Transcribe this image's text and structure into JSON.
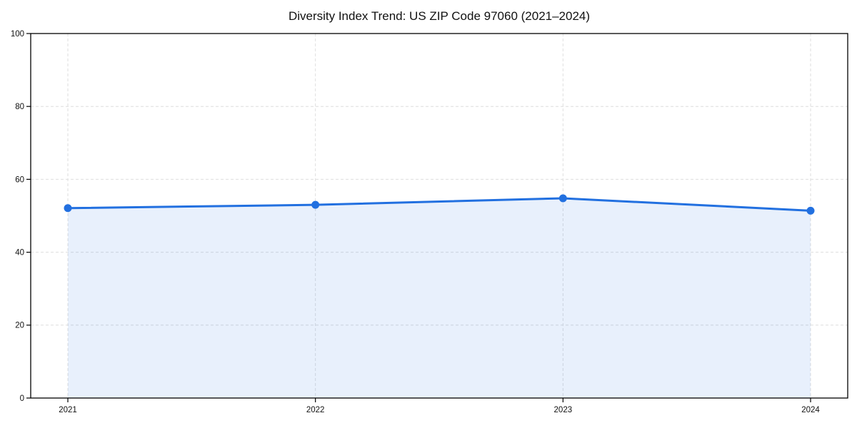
{
  "chart_data": {
    "type": "area",
    "title": "Diversity Index Trend: US ZIP Code 97060 (2021–2024)",
    "x": [
      2021,
      2022,
      2023,
      2024
    ],
    "categories": [
      "2021",
      "2022",
      "2023",
      "2024"
    ],
    "series": [
      {
        "name": "Diversity Index",
        "values": [
          52.1,
          53.0,
          54.8,
          51.4
        ]
      }
    ],
    "xlabel": "",
    "ylabel": "",
    "xlim": [
      2020.85,
      2024.15
    ],
    "ylim": [
      0,
      100
    ],
    "yticks": [
      0,
      20,
      40,
      60,
      80,
      100
    ],
    "ytick_labels": [
      "0",
      "20",
      "40",
      "60",
      "80",
      "100"
    ],
    "grid": true,
    "grid_style": "dashed",
    "legend_position": "none",
    "colors": {
      "line": "#2270e0",
      "fill": "#2270e0",
      "grid": "#dedede",
      "axis": "#000000",
      "background": "#ffffff",
      "text": "#111111"
    },
    "fill_opacity": 0.1,
    "marker": "circle",
    "marker_radius": 5.5,
    "line_width": 3
  }
}
